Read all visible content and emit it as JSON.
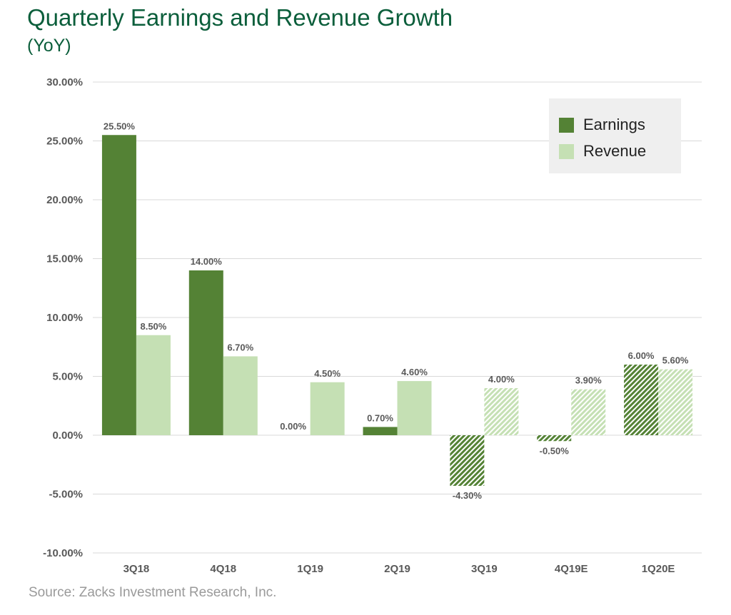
{
  "title": "Quarterly Earnings and Revenue Growth",
  "subtitle": "(YoY)",
  "source": "Source:  Zacks Investment Research, Inc.",
  "colors": {
    "earnings": "#548235",
    "revenue": "#c5e0b4",
    "title": "#0b5e3b",
    "grid": "#d9d9d9",
    "axis_text": "#595959"
  },
  "legend": {
    "earnings": "Earnings",
    "revenue": "Revenue"
  },
  "chart_data": {
    "type": "bar",
    "title": "Quarterly Earnings and Revenue Growth",
    "subtitle": "(YoY)",
    "categories": [
      "3Q18",
      "4Q18",
      "1Q19",
      "2Q19",
      "3Q19",
      "4Q19E",
      "1Q20E"
    ],
    "series": [
      {
        "name": "Earnings",
        "values": [
          25.5,
          14.0,
          0.0,
          0.7,
          -4.3,
          -0.5,
          6.0
        ],
        "labels": [
          "25.50%",
          "14.00%",
          "0.00%",
          "0.70%",
          "-4.30%",
          "-0.50%",
          "6.00%"
        ]
      },
      {
        "name": "Revenue",
        "values": [
          8.5,
          6.7,
          4.5,
          4.6,
          4.0,
          3.9,
          5.6
        ],
        "labels": [
          "8.50%",
          "6.70%",
          "4.50%",
          "4.60%",
          "4.00%",
          "3.90%",
          "5.60%"
        ]
      }
    ],
    "hatched_categories": [
      "3Q19",
      "4Q19E",
      "1Q20E"
    ],
    "ylim": [
      -10,
      30
    ],
    "yticks": [
      30,
      25,
      20,
      15,
      10,
      5,
      0,
      -5,
      -10
    ],
    "ytick_labels": [
      "30.00%",
      "25.00%",
      "20.00%",
      "15.00%",
      "10.00%",
      "5.00%",
      "0.00%",
      "-5.00%",
      "-10.00%"
    ],
    "grid": true,
    "legend_position": "top-right"
  }
}
